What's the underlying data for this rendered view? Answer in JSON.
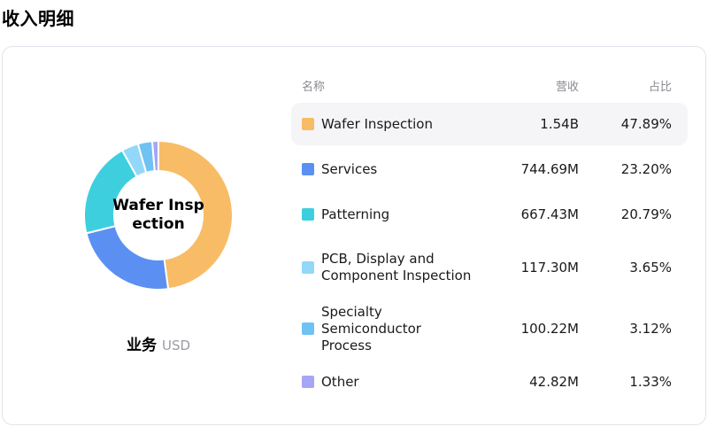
{
  "page_title": "收入明细",
  "table": {
    "columns": {
      "name": "名称",
      "revenue": "营收",
      "share": "占比"
    },
    "rows": [
      {
        "name": "Wafer Inspection",
        "revenue": "1.54B",
        "share": "47.89%",
        "color": "#F8BC66",
        "highlighted": true,
        "two_line": false
      },
      {
        "name": "Services",
        "revenue": "744.69M",
        "share": "23.20%",
        "color": "#5B90F2",
        "highlighted": false,
        "two_line": false
      },
      {
        "name": "Patterning",
        "revenue": "667.43M",
        "share": "20.79%",
        "color": "#3ECFDF",
        "highlighted": false,
        "two_line": false
      },
      {
        "name": "PCB, Display and Component Inspection",
        "revenue": "117.30M",
        "share": "3.65%",
        "color": "#92D8F9",
        "highlighted": false,
        "two_line": true
      },
      {
        "name": "Specialty Semiconductor Process",
        "revenue": "100.22M",
        "share": "3.12%",
        "color": "#6FC2F3",
        "highlighted": false,
        "two_line": true
      },
      {
        "name": "Other",
        "revenue": "42.82M",
        "share": "1.33%",
        "color": "#A5A6F5",
        "highlighted": false,
        "two_line": false
      }
    ]
  },
  "chart": {
    "center_label_lines": [
      "Wafer Insp",
      "ection"
    ],
    "footer": {
      "label": "业务",
      "unit": "USD"
    }
  },
  "chart_data": {
    "type": "pie",
    "subtype": "donut",
    "title": "收入明细",
    "dimension_label": "业务",
    "unit": "USD",
    "center_label": "Wafer Inspection",
    "categories": [
      "Wafer Inspection",
      "Services",
      "Patterning",
      "PCB, Display and Component Inspection",
      "Specialty Semiconductor Process",
      "Other"
    ],
    "values_percent": [
      47.89,
      23.2,
      20.79,
      3.65,
      3.12,
      1.33
    ],
    "values_revenue": [
      "1.54B",
      "744.69M",
      "667.43M",
      "117.30M",
      "100.22M",
      "42.82M"
    ],
    "colors": [
      "#F8BC66",
      "#5B90F2",
      "#3ECFDF",
      "#92D8F9",
      "#6FC2F3",
      "#A5A6F5"
    ],
    "start_angle_deg": 0,
    "direction": "clockwise",
    "legend_position": "right",
    "highlighted_category": "Wafer Inspection"
  }
}
